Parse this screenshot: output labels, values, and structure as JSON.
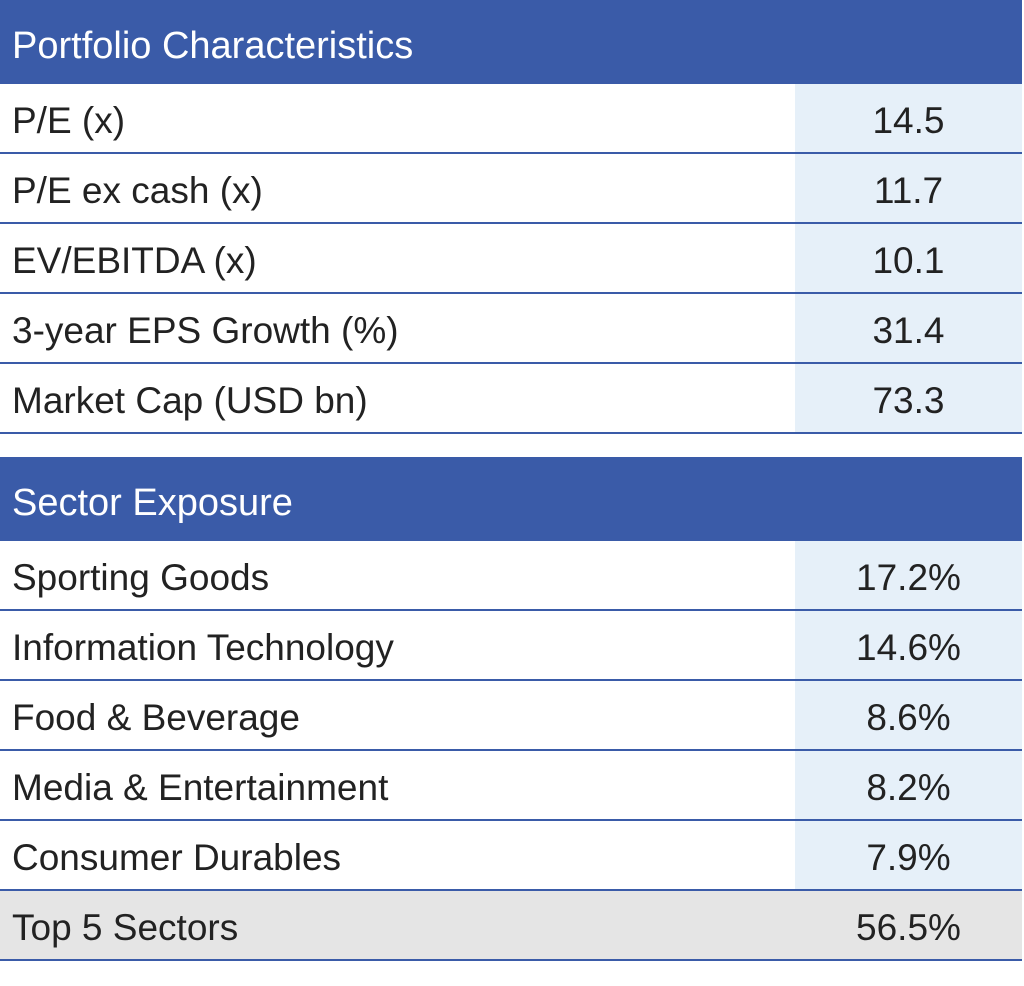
{
  "portfolio": {
    "title": "Portfolio Characteristics",
    "rows": [
      {
        "label": "P/E (x)",
        "value": "14.5"
      },
      {
        "label": "P/E ex cash (x)",
        "value": "11.7"
      },
      {
        "label": "EV/EBITDA (x)",
        "value": "10.1"
      },
      {
        "label": "3-year EPS Growth (%)",
        "value": "31.4"
      },
      {
        "label": "Market Cap (USD bn)",
        "value": "73.3"
      }
    ]
  },
  "sector": {
    "title": "Sector Exposure",
    "rows": [
      {
        "label": "Sporting Goods",
        "value": "17.2%"
      },
      {
        "label": "Information Technology",
        "value": "14.6%"
      },
      {
        "label": "Food & Beverage",
        "value": "8.6%"
      },
      {
        "label": "Media & Entertainment",
        "value": "8.2%"
      },
      {
        "label": "Consumer Durables",
        "value": "7.9%"
      }
    ],
    "total": {
      "label": "Top 5 Sectors",
      "value": "56.5%"
    }
  },
  "colors": {
    "header_bg": "#3a5ba8",
    "value_bg": "#e6f0f9",
    "total_bg": "#e5e5e5"
  }
}
